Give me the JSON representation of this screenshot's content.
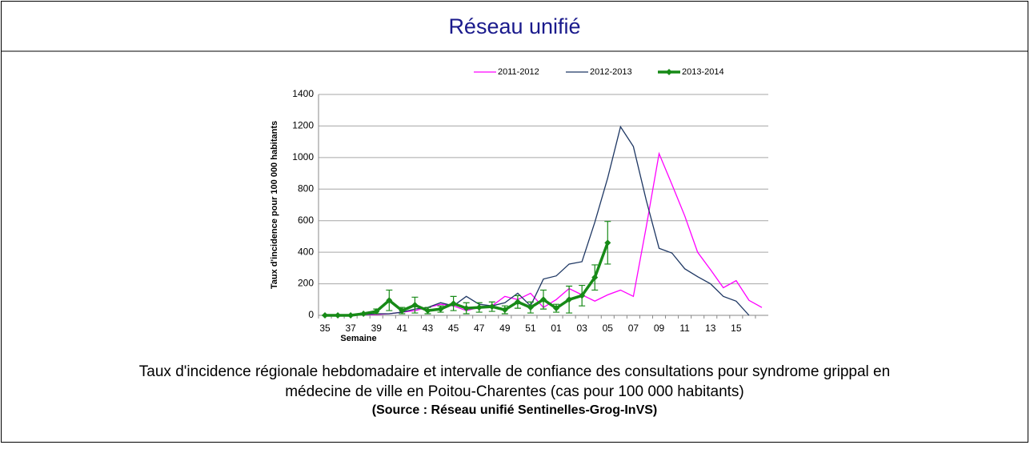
{
  "header": "Réseau unifié",
  "caption": [
    "Taux d'incidence régionale hebdomadaire et intervalle de confiance des consultations pour syndrome grippal en",
    "médecine de ville en Poitou-Charentes (cas pour 100 000 habitants)"
  ],
  "source": "(Source : Réseau unifié Sentinelles-Grog-InVS)",
  "chart_data": {
    "type": "line",
    "x_label": "Semaine",
    "y_label": "Taux d'incidence pour 100 000 habitants",
    "categories": [
      "35",
      null,
      "37",
      null,
      "39",
      null,
      "41",
      null,
      "43",
      null,
      "45",
      null,
      "47",
      null,
      "49",
      null,
      "51",
      null,
      "01",
      null,
      "03",
      null,
      "05",
      null,
      "07",
      null,
      "09",
      null,
      "11",
      null,
      "13",
      null,
      "15",
      null,
      null
    ],
    "series": [
      {
        "name": "2011-2012",
        "color": "#ff00ff",
        "values": [
          0,
          0,
          0,
          5,
          5,
          10,
          20,
          30,
          50,
          70,
          60,
          30,
          50,
          60,
          120,
          100,
          140,
          50,
          100,
          170,
          130,
          90,
          130,
          160,
          120,
          560,
          1025,
          830,
          630,
          400,
          290,
          175,
          220,
          95,
          50
        ]
      },
      {
        "name": "2012-2013",
        "color": "#1f3864",
        "values": [
          0,
          0,
          0,
          5,
          10,
          10,
          20,
          40,
          50,
          80,
          60,
          120,
          70,
          60,
          80,
          140,
          60,
          230,
          250,
          325,
          340,
          590,
          870,
          1195,
          1070,
          730,
          425,
          395,
          295,
          245,
          200,
          120,
          90,
          0,
          null
        ]
      },
      {
        "name": "2013-2014",
        "color": "#178a17",
        "values": [
          0,
          0,
          0,
          10,
          25,
          95,
          30,
          65,
          30,
          40,
          75,
          45,
          50,
          55,
          35,
          85,
          50,
          100,
          45,
          100,
          125,
          240,
          460,
          null,
          null,
          null,
          null,
          null,
          null,
          null,
          null,
          null,
          null,
          null,
          null
        ],
        "errors": [
          0,
          0,
          0,
          5,
          15,
          65,
          20,
          50,
          20,
          20,
          45,
          35,
          30,
          30,
          25,
          40,
          35,
          60,
          25,
          85,
          65,
          80,
          135,
          null,
          null,
          null,
          null,
          null,
          null,
          null,
          null,
          null,
          null,
          null,
          null
        ]
      }
    ],
    "ylim": [
      0,
      1400
    ],
    "yticks": [
      0,
      200,
      400,
      600,
      800,
      1000,
      1200,
      1400
    ],
    "grid": true,
    "legend": "top"
  }
}
